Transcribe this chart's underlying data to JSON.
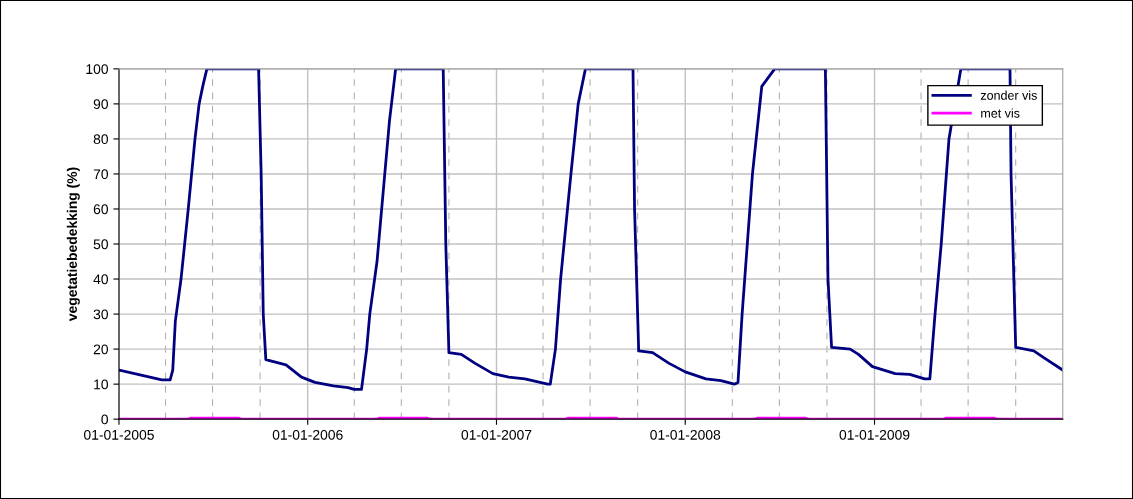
{
  "chart_data": {
    "type": "line",
    "ylabel": "vegetatiebedekking (%)",
    "xlim": [
      "2005-01-01",
      "2009-12-31"
    ],
    "xticks": [
      {
        "value": "2005-01-01",
        "label": "01-01-2005"
      },
      {
        "value": "2006-01-01",
        "label": "01-01-2006"
      },
      {
        "value": "2007-01-01",
        "label": "01-01-2007"
      },
      {
        "value": "2008-01-01",
        "label": "01-01-2008"
      },
      {
        "value": "2009-01-01",
        "label": "01-01-2009"
      }
    ],
    "ylim": [
      0,
      100
    ],
    "yticks": [
      0,
      10,
      20,
      30,
      40,
      50,
      60,
      70,
      80,
      90,
      100
    ],
    "grid": true,
    "legend": "top right",
    "series": [
      {
        "name": "zonder vis",
        "color": "#000080",
        "x": [
          "2005-01-01",
          "2005-02-15",
          "2005-03-25",
          "2005-04-10",
          "2005-04-15",
          "2005-04-20",
          "2005-05-01",
          "2005-05-15",
          "2005-05-28",
          "2005-06-05",
          "2005-06-12",
          "2005-06-20",
          "2005-09-28",
          "2005-10-03",
          "2005-10-07",
          "2005-10-12",
          "2005-11-20",
          "2005-12-20",
          "2006-01-15",
          "2006-02-20",
          "2006-03-20",
          "2006-04-01",
          "2006-04-15",
          "2006-04-25",
          "2006-05-01",
          "2006-05-15",
          "2006-05-30",
          "2006-06-08",
          "2006-06-20",
          "2006-09-20",
          "2006-09-25",
          "2006-10-01",
          "2006-10-25",
          "2006-11-20",
          "2006-12-25",
          "2007-01-25",
          "2007-02-25",
          "2007-04-10",
          "2007-04-15",
          "2007-04-25",
          "2007-05-05",
          "2007-05-25",
          "2007-06-08",
          "2007-06-22",
          "2007-09-22",
          "2007-09-25",
          "2007-10-03",
          "2007-10-30",
          "2007-11-30",
          "2008-01-01",
          "2008-02-10",
          "2008-03-10",
          "2008-04-05",
          "2008-04-12",
          "2008-04-20",
          "2008-05-10",
          "2008-05-28",
          "2008-06-22",
          "2008-09-28",
          "2008-10-03",
          "2008-10-10",
          "2008-11-15",
          "2008-12-01",
          "2008-12-28",
          "2009-02-10",
          "2009-03-10",
          "2009-04-08",
          "2009-04-18",
          "2009-04-28",
          "2009-05-10",
          "2009-05-25",
          "2009-06-17",
          "2009-09-20",
          "2009-09-22",
          "2009-10-01",
          "2009-11-05",
          "2009-11-25",
          "2009-12-31"
        ],
        "values": [
          14,
          12.5,
          11.2,
          11.2,
          14,
          28,
          40,
          60,
          80,
          90,
          95,
          100,
          100,
          70,
          30,
          17,
          15.5,
          12,
          10.5,
          9.5,
          9,
          8.5,
          8.5,
          20,
          30,
          45,
          70,
          85,
          100,
          100,
          50,
          19,
          18.5,
          16,
          13,
          12,
          11.5,
          10,
          10,
          20,
          40,
          70,
          90,
          100,
          100,
          60,
          19.5,
          19,
          16,
          13.5,
          11.5,
          11,
          10,
          10.5,
          30,
          70,
          95,
          100,
          100,
          40,
          20.5,
          20,
          18.5,
          15,
          13,
          12.8,
          11.5,
          11.5,
          30,
          50,
          80,
          100,
          100,
          70,
          20.5,
          19.5,
          17.5,
          14
        ]
      },
      {
        "name": "met vis",
        "color": "#ff00ff",
        "x": [
          "2005-01-01",
          "2005-05-15",
          "2005-05-20",
          "2005-08-20",
          "2005-08-25",
          "2006-05-15",
          "2006-05-20",
          "2006-08-20",
          "2006-08-25",
          "2007-05-15",
          "2007-05-20",
          "2007-08-20",
          "2007-08-25",
          "2008-05-15",
          "2008-05-20",
          "2008-08-20",
          "2008-08-25",
          "2009-05-15",
          "2009-05-20",
          "2009-08-20",
          "2009-08-25",
          "2009-12-31"
        ],
        "values": [
          0,
          0,
          0.3,
          0.3,
          0,
          0,
          0.3,
          0.3,
          0,
          0,
          0.3,
          0.3,
          0,
          0,
          0.3,
          0.3,
          0,
          0,
          0.3,
          0.3,
          0,
          0
        ]
      }
    ]
  }
}
